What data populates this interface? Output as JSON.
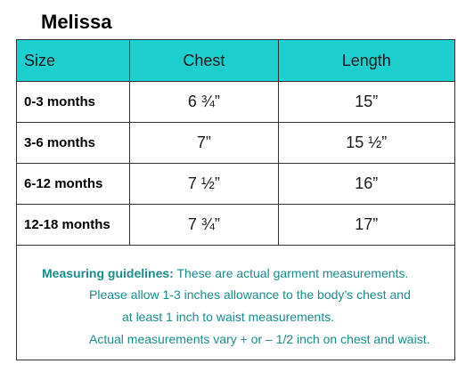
{
  "title": "Melissa",
  "table": {
    "headers": [
      "Size",
      "Chest",
      "Length"
    ],
    "rows": [
      {
        "size": "0-3 months",
        "chest": "6 ¾”",
        "length": "15”"
      },
      {
        "size": "3-6 months",
        "chest": "7”",
        "length": "15 ½”"
      },
      {
        "size": "6-12 months",
        "chest": "7 ½”",
        "length": "16”"
      },
      {
        "size": "12-18 months",
        "chest": "7 ¾”",
        "length": "17”"
      }
    ]
  },
  "guidelines": {
    "label": "Measuring guidelines:",
    "line1": " These are actual garment measurements.",
    "line2": "Please allow 1-3 inches allowance to the body’s chest and",
    "line3": "at least 1 inch to waist measurements.",
    "line4": "Actual measurements vary + or – 1/2 inch on chest and waist."
  },
  "colors": {
    "header_bg": "#1ecfcf",
    "guideline_text": "#1a8c8c"
  }
}
